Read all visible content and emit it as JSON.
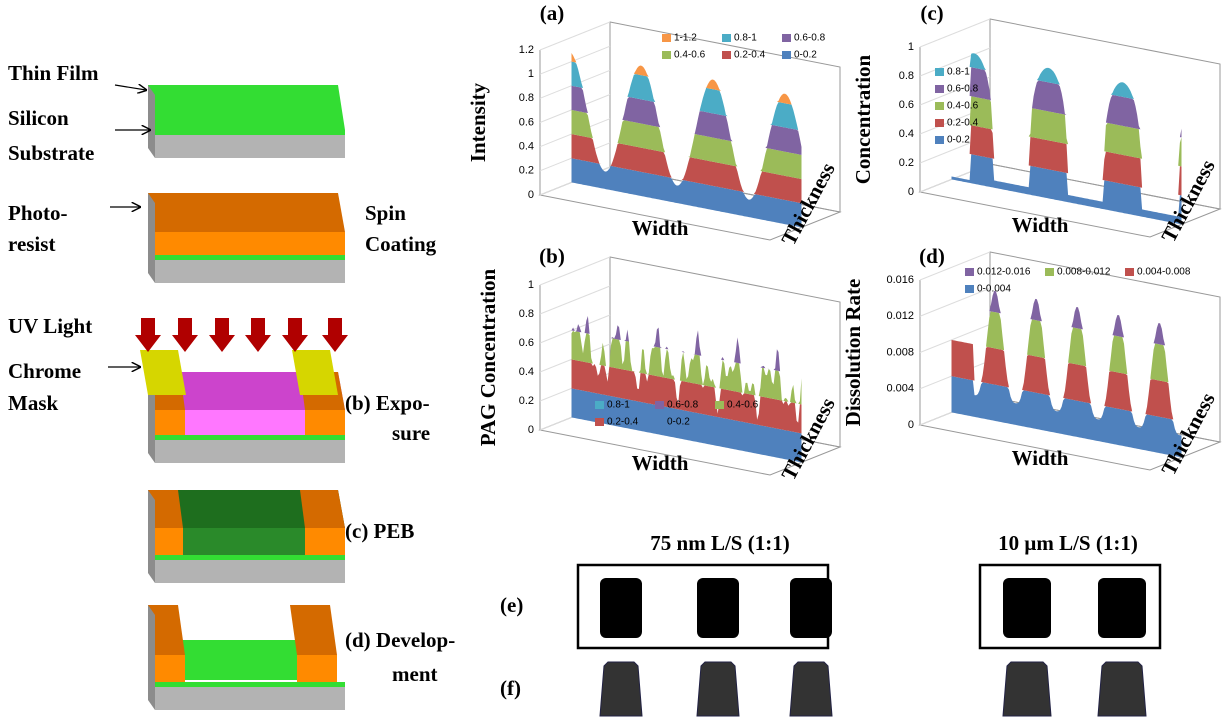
{
  "process": {
    "labels": {
      "thin_film": "Thin Film",
      "silicon": "Silicon",
      "substrate": "Substrate",
      "photo": "Photo-",
      "resist": "resist",
      "spin": "Spin",
      "coating": "Coating",
      "uv_light": "UV Light",
      "chrome": "Chrome",
      "mask": "Mask",
      "exposure_1": "(b) Expo-",
      "exposure_2": "sure",
      "peb": "(c) PEB",
      "development_1": "(d) Develop-",
      "development_2": "ment"
    }
  },
  "plots": [
    {
      "panel": "(a)",
      "z_label": "Intensity",
      "x_label": "Width",
      "depth_label": "Thickness",
      "ticks": [
        "0",
        "0.2",
        "0.4",
        "0.6",
        "0.8",
        "1",
        "1.2"
      ],
      "legend": [
        "1-1.2",
        "0.8-1",
        "0.6-0.8",
        "0.4-0.6",
        "0.2-0.4",
        "0-0.2"
      ]
    },
    {
      "panel": "(c)",
      "z_label": "Concentration",
      "x_label": "Width",
      "depth_label": "Thickness",
      "ticks": [
        "0",
        "0.2",
        "0.4",
        "0.6",
        "0.8",
        "1"
      ],
      "legend": [
        "0.8-1",
        "0.6-0.8",
        "0.4-0.6",
        "0.2-0.4",
        "0-0.2"
      ]
    },
    {
      "panel": "(b)",
      "z_label": "PAG Concentration",
      "x_label": "Width",
      "depth_label": "Thickness",
      "ticks": [
        "0",
        "0.2",
        "0.4",
        "0.6",
        "0.8",
        "1"
      ],
      "legend": [
        "0.8-1",
        "0.6-0.8",
        "0.4-0.6",
        "0.2-0.4",
        "0-0.2"
      ]
    },
    {
      "panel": "(d)",
      "z_label": "Dissolution Rate",
      "x_label": "Width",
      "depth_label": "Thickness",
      "ticks": [
        "0",
        "0.004",
        "0.008",
        "0.012",
        "0.016"
      ],
      "legend": [
        "0.012-0.016",
        "0.008-0.012",
        "0.004-0.008",
        "0-0.004"
      ]
    }
  ],
  "micrographs": {
    "title_left": "75 nm L/S (1:1)",
    "title_right": "10 μm L/S (1:1)",
    "row_e": "(e)",
    "row_f": "(f)"
  }
}
